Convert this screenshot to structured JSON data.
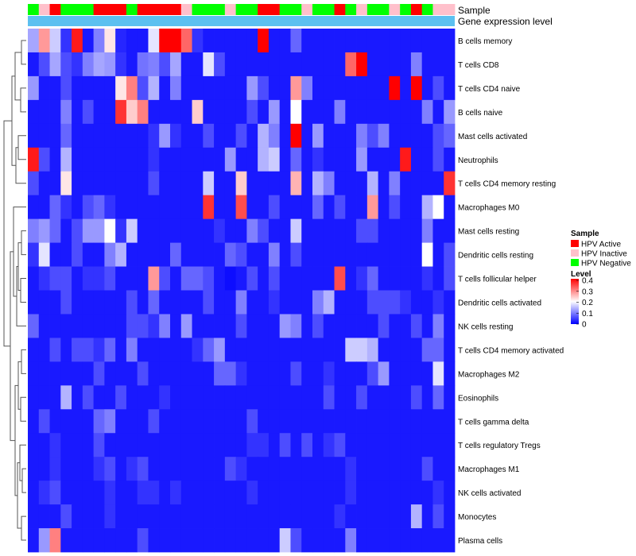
{
  "chart_data": {
    "type": "heatmap",
    "annotation_labels": [
      "Sample",
      "Gene expression level"
    ],
    "legend_sample_title": "Sample",
    "sample_groups": [
      {
        "name": "HPV Active",
        "color": "#ff0000"
      },
      {
        "name": "HPV Inactive",
        "color": "#ffc0cb"
      },
      {
        "name": "HPV Negative",
        "color": "#00ff00"
      }
    ],
    "sample_annotation": [
      "N",
      "I",
      "A",
      "N",
      "N",
      "N",
      "A",
      "A",
      "A",
      "N",
      "A",
      "A",
      "A",
      "A",
      "I",
      "N",
      "N",
      "N",
      "I",
      "N",
      "N",
      "A",
      "A",
      "N",
      "N",
      "I",
      "N",
      "N",
      "A",
      "N",
      "I",
      "N",
      "N",
      "I",
      "N",
      "A",
      "N",
      "I",
      "I"
    ],
    "expression_bar_color": "#5cc0f0",
    "legend_level_title": "Level",
    "level_ticks": [
      "0.4",
      "0.3",
      "0.2",
      "0.1",
      "0"
    ],
    "color_range": [
      0,
      0.4
    ],
    "colors": {
      "low": "#0000ff",
      "mid": "#ffffff",
      "high": "#ff0000"
    },
    "rows": [
      "B cells memory",
      "T cells CD8",
      "T cells CD4 naive",
      "B cells naive",
      "Mast cells activated",
      "Neutrophils",
      "T cells CD4 memory resting",
      "Macrophages M0",
      "Mast cells resting",
      "Dendritic cells resting",
      "T cells follicular helper",
      "Dendritic cells activated",
      "NK cells resting",
      "T cells CD4 memory activated",
      "Macrophages M2",
      "Eosinophils",
      "T cells gamma delta",
      "T cells regulatory  Tregs",
      "Macrophages M1",
      "NK cells activated",
      "Monocytes",
      "Plasma cells"
    ],
    "values": [
      [
        0.13,
        0.28,
        0.16,
        0.04,
        0.38,
        0.02,
        0.1,
        0.22,
        0.03,
        0.02,
        0.02,
        0.18,
        0.4,
        0.4,
        0.32,
        0.04,
        0.02,
        0.02,
        0.02,
        0.02,
        0.02,
        0.4,
        0.02,
        0.02,
        0.08,
        0.02,
        0.02,
        0.02,
        0.02,
        0.02,
        0.02,
        0.02,
        0.02,
        0.02,
        0.02,
        0.02,
        0.02,
        0.02,
        0.02
      ],
      [
        0.02,
        0.06,
        0.13,
        0.06,
        0.04,
        0.1,
        0.13,
        0.12,
        0.04,
        0.02,
        0.09,
        0.1,
        0.06,
        0.13,
        0.02,
        0.02,
        0.18,
        0.06,
        0.02,
        0.02,
        0.02,
        0.02,
        0.02,
        0.02,
        0.02,
        0.02,
        0.02,
        0.02,
        0.02,
        0.32,
        0.4,
        0.02,
        0.02,
        0.02,
        0.02,
        0.1,
        0.02,
        0.02,
        0.02
      ],
      [
        0.12,
        0.02,
        0.02,
        0.06,
        0.02,
        0.02,
        0.02,
        0.02,
        0.22,
        0.3,
        0.06,
        0.14,
        0.02,
        0.1,
        0.02,
        0.02,
        0.02,
        0.02,
        0.02,
        0.02,
        0.12,
        0.06,
        0.02,
        0.02,
        0.28,
        0.1,
        0.02,
        0.02,
        0.02,
        0.02,
        0.02,
        0.02,
        0.02,
        0.4,
        0.02,
        0.4,
        0.02,
        0.06,
        0.02
      ],
      [
        0.02,
        0.02,
        0.02,
        0.1,
        0.02,
        0.06,
        0.02,
        0.02,
        0.36,
        0.24,
        0.3,
        0.02,
        0.02,
        0.02,
        0.02,
        0.24,
        0.02,
        0.02,
        0.02,
        0.02,
        0.06,
        0.02,
        0.12,
        0.02,
        0.2,
        0.02,
        0.02,
        0.02,
        0.1,
        0.02,
        0.02,
        0.02,
        0.02,
        0.02,
        0.02,
        0.02,
        0.1,
        0.02,
        0.12
      ],
      [
        0.02,
        0.02,
        0.02,
        0.08,
        0.02,
        0.02,
        0.02,
        0.02,
        0.02,
        0.02,
        0.02,
        0.04,
        0.12,
        0.04,
        0.02,
        0.02,
        0.06,
        0.02,
        0.02,
        0.06,
        0.02,
        0.14,
        0.1,
        0.02,
        0.4,
        0.02,
        0.12,
        0.02,
        0.02,
        0.02,
        0.1,
        0.06,
        0.1,
        0.02,
        0.02,
        0.02,
        0.02,
        0.06,
        0.08
      ],
      [
        0.38,
        0.06,
        0.02,
        0.14,
        0.02,
        0.02,
        0.02,
        0.02,
        0.02,
        0.02,
        0.02,
        0.04,
        0.02,
        0.02,
        0.02,
        0.02,
        0.02,
        0.02,
        0.12,
        0.02,
        0.02,
        0.14,
        0.16,
        0.02,
        0.08,
        0.02,
        0.04,
        0.02,
        0.02,
        0.02,
        0.12,
        0.02,
        0.02,
        0.02,
        0.38,
        0.02,
        0.02,
        0.06,
        0.02
      ],
      [
        0.06,
        0.02,
        0.02,
        0.22,
        0.02,
        0.02,
        0.02,
        0.02,
        0.02,
        0.02,
        0.02,
        0.06,
        0.02,
        0.02,
        0.02,
        0.02,
        0.16,
        0.02,
        0.02,
        0.24,
        0.02,
        0.02,
        0.02,
        0.02,
        0.26,
        0.02,
        0.14,
        0.1,
        0.02,
        0.02,
        0.02,
        0.14,
        0.02,
        0.1,
        0.02,
        0.02,
        0.02,
        0.02,
        0.36
      ],
      [
        0.02,
        0.02,
        0.08,
        0.04,
        0.02,
        0.06,
        0.08,
        0.04,
        0.02,
        0.02,
        0.02,
        0.02,
        0.02,
        0.02,
        0.02,
        0.02,
        0.36,
        0.02,
        0.02,
        0.34,
        0.02,
        0.02,
        0.06,
        0.02,
        0.02,
        0.02,
        0.08,
        0.02,
        0.06,
        0.02,
        0.02,
        0.28,
        0.02,
        0.06,
        0.02,
        0.02,
        0.14,
        0.2,
        0.02
      ],
      [
        0.1,
        0.12,
        0.08,
        0.02,
        0.06,
        0.12,
        0.12,
        0.2,
        0.04,
        0.16,
        0.02,
        0.02,
        0.02,
        0.02,
        0.02,
        0.02,
        0.02,
        0.04,
        0.02,
        0.02,
        0.1,
        0.06,
        0.02,
        0.02,
        0.16,
        0.02,
        0.02,
        0.02,
        0.02,
        0.02,
        0.06,
        0.06,
        0.02,
        0.02,
        0.02,
        0.02,
        0.1,
        0.02,
        0.02
      ],
      [
        0.04,
        0.18,
        0.02,
        0.02,
        0.06,
        0.02,
        0.02,
        0.1,
        0.14,
        0.02,
        0.02,
        0.02,
        0.02,
        0.08,
        0.02,
        0.02,
        0.02,
        0.02,
        0.08,
        0.06,
        0.02,
        0.02,
        0.1,
        0.02,
        0.06,
        0.02,
        0.02,
        0.02,
        0.02,
        0.02,
        0.02,
        0.02,
        0.02,
        0.02,
        0.02,
        0.02,
        0.2,
        0.02,
        0.06
      ],
      [
        0.02,
        0.04,
        0.06,
        0.06,
        0.02,
        0.04,
        0.04,
        0.06,
        0.02,
        0.02,
        0.02,
        0.28,
        0.06,
        0.02,
        0.08,
        0.08,
        0.06,
        0.02,
        0.01,
        0.02,
        0.06,
        0.02,
        0.06,
        0.02,
        0.02,
        0.02,
        0.02,
        0.02,
        0.34,
        0.02,
        0.04,
        0.08,
        0.02,
        0.02,
        0.02,
        0.02,
        0.04,
        0.02,
        0.06
      ],
      [
        0.02,
        0.02,
        0.02,
        0.06,
        0.02,
        0.02,
        0.02,
        0.02,
        0.02,
        0.06,
        0.02,
        0.08,
        0.02,
        0.02,
        0.02,
        0.02,
        0.06,
        0.02,
        0.02,
        0.1,
        0.02,
        0.02,
        0.04,
        0.02,
        0.02,
        0.02,
        0.1,
        0.14,
        0.02,
        0.02,
        0.02,
        0.06,
        0.06,
        0.06,
        0.04,
        0.02,
        0.02,
        0.04,
        0.02
      ],
      [
        0.08,
        0.02,
        0.02,
        0.02,
        0.02,
        0.02,
        0.02,
        0.02,
        0.02,
        0.06,
        0.06,
        0.04,
        0.1,
        0.02,
        0.12,
        0.02,
        0.02,
        0.02,
        0.02,
        0.06,
        0.02,
        0.02,
        0.02,
        0.12,
        0.1,
        0.02,
        0.06,
        0.02,
        0.02,
        0.02,
        0.02,
        0.02,
        0.06,
        0.02,
        0.02,
        0.06,
        0.02,
        0.1,
        0.02
      ],
      [
        0.02,
        0.02,
        0.06,
        0.02,
        0.06,
        0.06,
        0.04,
        0.08,
        0.02,
        0.1,
        0.02,
        0.02,
        0.02,
        0.02,
        0.02,
        0.04,
        0.08,
        0.12,
        0.02,
        0.02,
        0.02,
        0.02,
        0.02,
        0.02,
        0.02,
        0.02,
        0.02,
        0.02,
        0.02,
        0.16,
        0.16,
        0.14,
        0.02,
        0.02,
        0.02,
        0.02,
        0.08,
        0.08,
        0.02
      ],
      [
        0.02,
        0.02,
        0.02,
        0.02,
        0.02,
        0.02,
        0.06,
        0.02,
        0.02,
        0.02,
        0.06,
        0.02,
        0.02,
        0.02,
        0.02,
        0.02,
        0.02,
        0.08,
        0.08,
        0.04,
        0.02,
        0.02,
        0.02,
        0.02,
        0.06,
        0.02,
        0.02,
        0.04,
        0.02,
        0.02,
        0.02,
        0.06,
        0.12,
        0.02,
        0.02,
        0.02,
        0.02,
        0.18,
        0.02
      ],
      [
        0.02,
        0.02,
        0.02,
        0.14,
        0.02,
        0.06,
        0.02,
        0.02,
        0.06,
        0.02,
        0.02,
        0.02,
        0.04,
        0.02,
        0.02,
        0.02,
        0.02,
        0.02,
        0.02,
        0.02,
        0.02,
        0.02,
        0.02,
        0.02,
        0.02,
        0.02,
        0.02,
        0.06,
        0.02,
        0.02,
        0.06,
        0.02,
        0.02,
        0.02,
        0.02,
        0.06,
        0.02,
        0.08,
        0.02
      ],
      [
        0.02,
        0.06,
        0.02,
        0.02,
        0.02,
        0.02,
        0.08,
        0.1,
        0.02,
        0.02,
        0.02,
        0.06,
        0.02,
        0.02,
        0.02,
        0.02,
        0.02,
        0.02,
        0.02,
        0.02,
        0.06,
        0.02,
        0.02,
        0.02,
        0.02,
        0.02,
        0.02,
        0.02,
        0.02,
        0.02,
        0.02,
        0.02,
        0.02,
        0.02,
        0.02,
        0.02,
        0.02,
        0.02,
        0.02
      ],
      [
        0.02,
        0.02,
        0.04,
        0.02,
        0.02,
        0.02,
        0.06,
        0.02,
        0.02,
        0.02,
        0.02,
        0.02,
        0.02,
        0.02,
        0.02,
        0.02,
        0.02,
        0.02,
        0.02,
        0.02,
        0.04,
        0.04,
        0.02,
        0.06,
        0.02,
        0.06,
        0.02,
        0.04,
        0.06,
        0.02,
        0.02,
        0.02,
        0.02,
        0.02,
        0.02,
        0.02,
        0.02,
        0.02,
        0.02
      ],
      [
        0.02,
        0.02,
        0.04,
        0.02,
        0.02,
        0.02,
        0.04,
        0.06,
        0.02,
        0.04,
        0.06,
        0.02,
        0.02,
        0.02,
        0.02,
        0.02,
        0.02,
        0.02,
        0.06,
        0.04,
        0.02,
        0.02,
        0.02,
        0.02,
        0.02,
        0.02,
        0.02,
        0.02,
        0.02,
        0.04,
        0.02,
        0.02,
        0.02,
        0.02,
        0.02,
        0.02,
        0.06,
        0.02,
        0.02
      ],
      [
        0.02,
        0.04,
        0.06,
        0.02,
        0.02,
        0.02,
        0.02,
        0.04,
        0.02,
        0.02,
        0.04,
        0.04,
        0.02,
        0.04,
        0.02,
        0.02,
        0.02,
        0.02,
        0.02,
        0.02,
        0.04,
        0.02,
        0.02,
        0.02,
        0.02,
        0.02,
        0.02,
        0.02,
        0.02,
        0.04,
        0.02,
        0.02,
        0.02,
        0.02,
        0.02,
        0.02,
        0.02,
        0.04,
        0.02
      ],
      [
        0.02,
        0.02,
        0.02,
        0.06,
        0.02,
        0.02,
        0.02,
        0.04,
        0.02,
        0.02,
        0.02,
        0.02,
        0.02,
        0.02,
        0.02,
        0.02,
        0.02,
        0.02,
        0.02,
        0.02,
        0.02,
        0.02,
        0.02,
        0.02,
        0.02,
        0.02,
        0.02,
        0.02,
        0.04,
        0.02,
        0.02,
        0.02,
        0.02,
        0.02,
        0.02,
        0.14,
        0.02,
        0.06,
        0.02
      ],
      [
        0.02,
        0.12,
        0.3,
        0.02,
        0.02,
        0.02,
        0.02,
        0.02,
        0.02,
        0.02,
        0.06,
        0.02,
        0.02,
        0.02,
        0.02,
        0.02,
        0.02,
        0.02,
        0.02,
        0.02,
        0.02,
        0.02,
        0.02,
        0.16,
        0.06,
        0.02,
        0.02,
        0.02,
        0.02,
        0.1,
        0.02,
        0.02,
        0.02,
        0.02,
        0.02,
        0.02,
        0.02,
        0.02,
        0.02
      ]
    ]
  }
}
